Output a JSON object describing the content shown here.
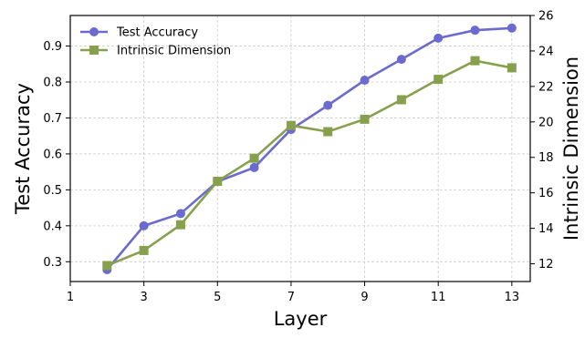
{
  "chart_data": {
    "type": "line",
    "xlabel": "Layer",
    "ylabel_left": "Test Accuracy",
    "ylabel_right": "Intrinsic Dimension",
    "xlim": [
      1,
      13.5
    ],
    "ylim_left": [
      0.245,
      0.985
    ],
    "ylim_right": [
      11,
      26
    ],
    "xticks": [
      1,
      3,
      5,
      7,
      9,
      11,
      13
    ],
    "yticks_left": [
      0.3,
      0.4,
      0.5,
      0.6,
      0.7,
      0.8,
      0.9
    ],
    "yticks_right": [
      12,
      14,
      16,
      18,
      20,
      22,
      24,
      26
    ],
    "grid": true,
    "legend_position": "top-left",
    "series": [
      {
        "name": "Test Accuracy",
        "axis": "left",
        "marker": "circle",
        "color": "#6B6BCF",
        "x": [
          2,
          3,
          4,
          5,
          6,
          7,
          8,
          9,
          10,
          11,
          12,
          13
        ],
        "values": [
          0.278,
          0.4,
          0.434,
          0.523,
          0.562,
          0.668,
          0.735,
          0.805,
          0.863,
          0.922,
          0.944,
          0.95
        ]
      },
      {
        "name": "Intrinsic Dimension",
        "axis": "right",
        "marker": "square",
        "color": "#86A04E",
        "x": [
          2,
          3,
          4,
          5,
          6,
          7,
          8,
          9,
          10,
          11,
          12,
          13
        ],
        "values": [
          11.9,
          12.75,
          14.2,
          16.65,
          17.95,
          19.8,
          19.45,
          20.15,
          21.25,
          22.4,
          23.45,
          23.05
        ]
      }
    ]
  }
}
